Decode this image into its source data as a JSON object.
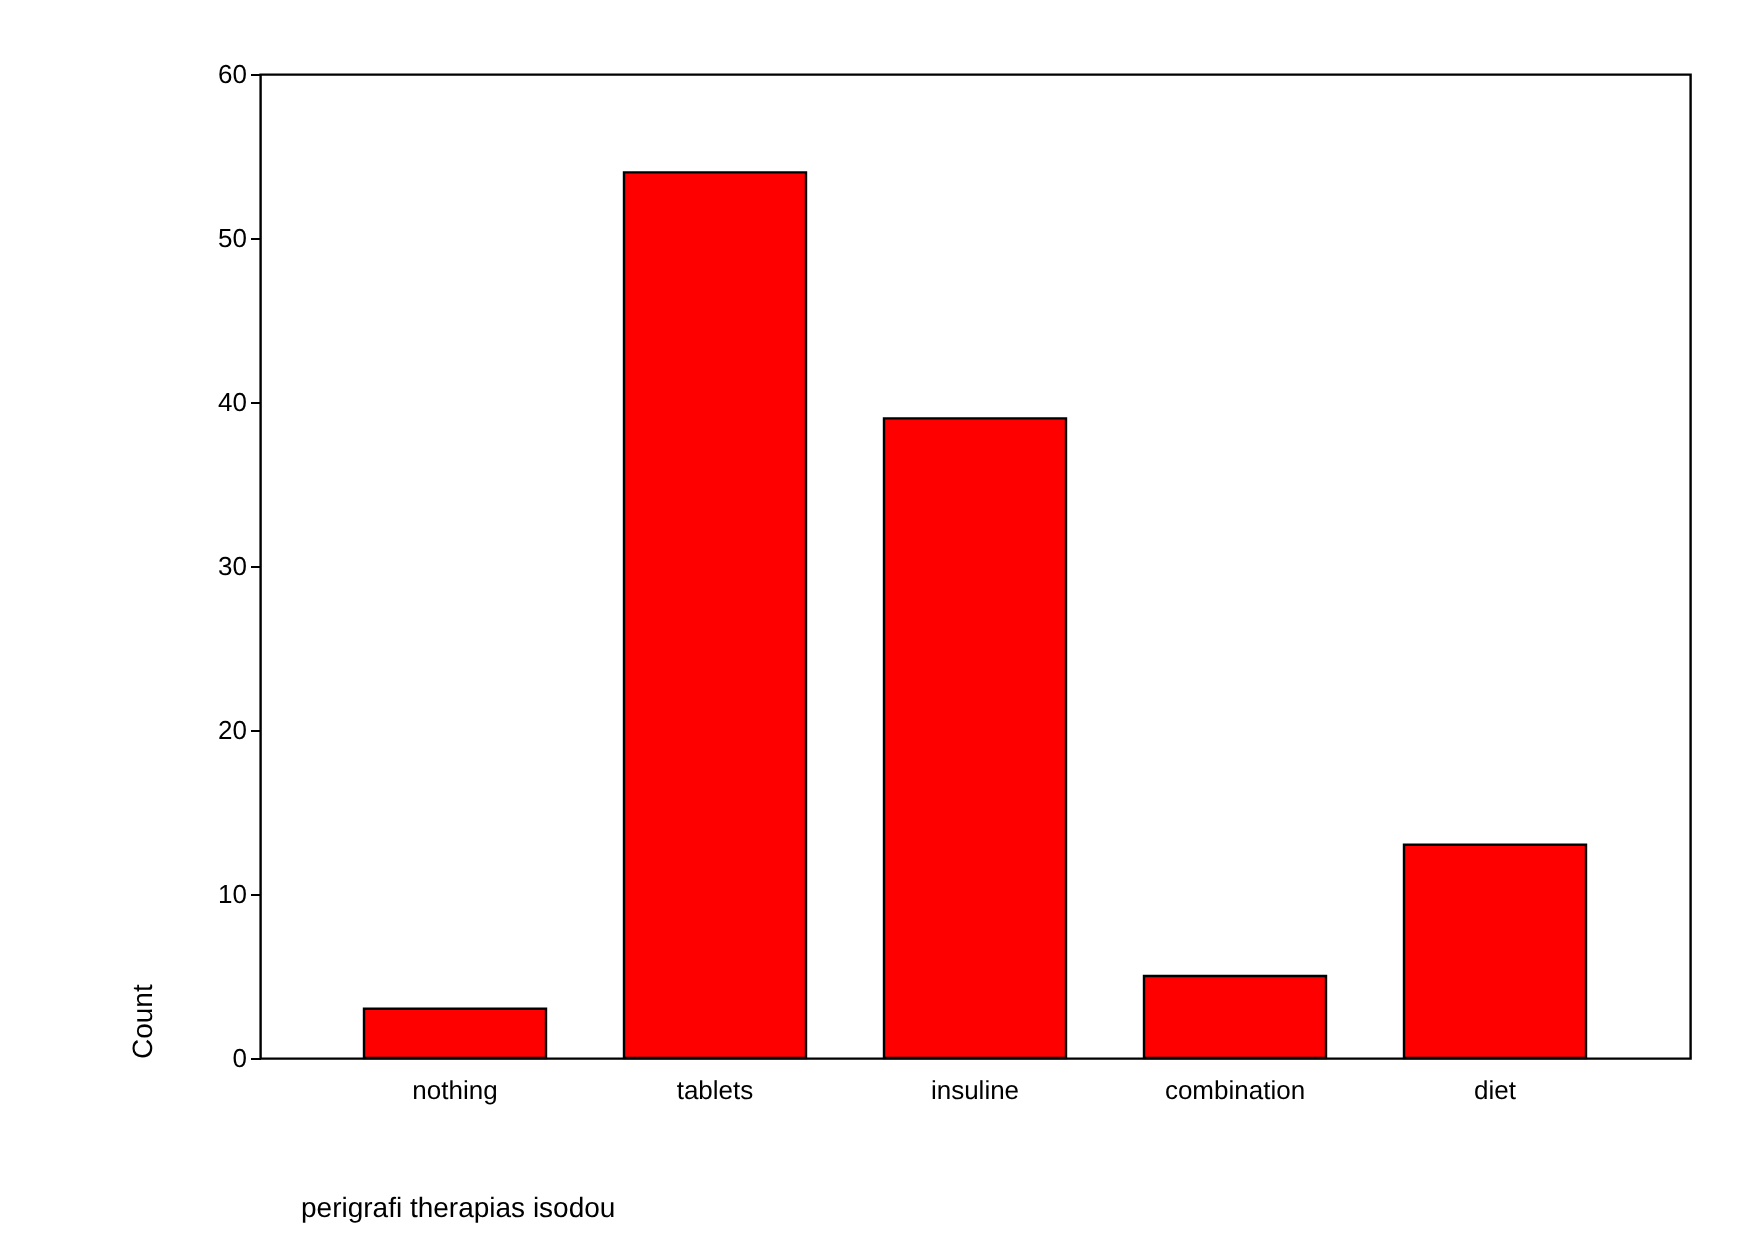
{
  "chart_data": {
    "type": "bar",
    "xlabel": "perigrafi therapias isodou",
    "ylabel": "Count",
    "categories": [
      "nothing",
      "tablets",
      "insuline",
      "combination",
      "diet"
    ],
    "values": [
      3,
      54,
      39,
      5,
      13
    ],
    "color": "#ff0000",
    "ylim": [
      0,
      60
    ],
    "yticks": [
      0,
      10,
      20,
      30,
      40,
      50,
      60
    ],
    "grid": false
  }
}
